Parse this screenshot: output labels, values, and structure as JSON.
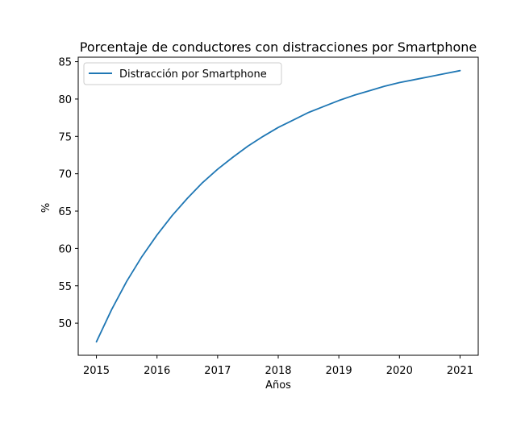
{
  "chart_data": {
    "type": "line",
    "title": "Porcentaje de conductores con distracciones por Smartphone",
    "xlabel": "Años",
    "ylabel": "%",
    "x": [
      2015,
      2015.25,
      2015.5,
      2015.75,
      2016,
      2016.25,
      2016.5,
      2016.75,
      2017,
      2017.25,
      2017.5,
      2017.75,
      2018,
      2018.25,
      2018.5,
      2018.75,
      2019,
      2019.25,
      2019.5,
      2019.75,
      2020,
      2020.25,
      2020.5,
      2020.75,
      2021
    ],
    "series": [
      {
        "name": "Distracción por Smartphone",
        "color": "#1f77b4",
        "values": [
          47.5,
          51.8,
          55.6,
          58.9,
          61.8,
          64.4,
          66.7,
          68.8,
          70.6,
          72.2,
          73.7,
          75.0,
          76.2,
          77.2,
          78.2,
          79.0,
          79.8,
          80.5,
          81.1,
          81.7,
          82.2,
          82.6,
          83.0,
          83.4,
          83.8
        ]
      }
    ],
    "xticks": [
      2015,
      2016,
      2017,
      2018,
      2019,
      2020,
      2021
    ],
    "yticks": [
      50,
      55,
      60,
      65,
      70,
      75,
      80,
      85
    ],
    "xlim": [
      2014.7,
      2021.3
    ],
    "ylim": [
      45.7,
      85.6
    ],
    "grid": false,
    "legend_position": "upper-left"
  }
}
